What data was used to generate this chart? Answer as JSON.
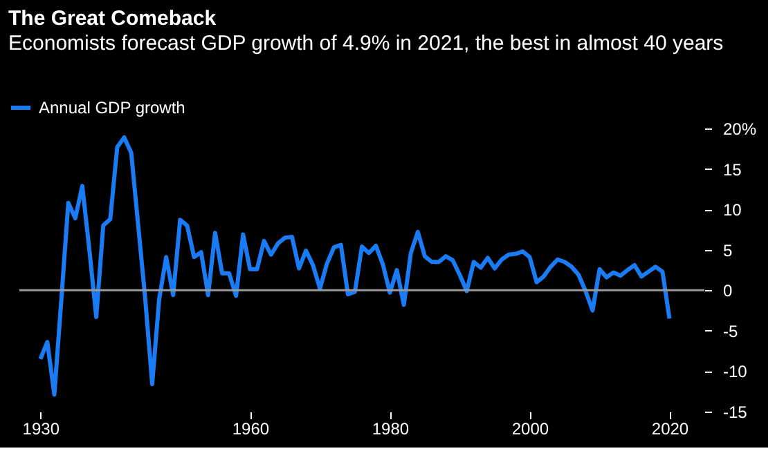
{
  "chart_data": {
    "type": "line",
    "title": "The Great Comeback",
    "subtitle": "Economists forecast GDP growth of 4.9% in 2021, the best in almost 40 years",
    "x": [
      1930,
      1931,
      1932,
      1933,
      1934,
      1935,
      1936,
      1937,
      1938,
      1939,
      1940,
      1941,
      1942,
      1943,
      1944,
      1945,
      1946,
      1947,
      1948,
      1949,
      1950,
      1951,
      1952,
      1953,
      1954,
      1955,
      1956,
      1957,
      1958,
      1959,
      1960,
      1961,
      1962,
      1963,
      1964,
      1965,
      1966,
      1967,
      1968,
      1969,
      1970,
      1971,
      1972,
      1973,
      1974,
      1975,
      1976,
      1977,
      1978,
      1979,
      1980,
      1981,
      1982,
      1983,
      1984,
      1985,
      1986,
      1987,
      1988,
      1989,
      1990,
      1991,
      1992,
      1993,
      1994,
      1995,
      1996,
      1997,
      1998,
      1999,
      2000,
      2001,
      2002,
      2003,
      2004,
      2005,
      2006,
      2007,
      2008,
      2009,
      2010,
      2011,
      2012,
      2013,
      2014,
      2015,
      2016,
      2017,
      2018,
      2019,
      2020
    ],
    "series": [
      {
        "name": "Annual GDP growth",
        "color": "#1a7cf5",
        "values": [
          -8.5,
          -6.4,
          -12.9,
          -1.2,
          10.8,
          8.9,
          12.9,
          5.1,
          -3.3,
          8.0,
          8.8,
          17.7,
          18.9,
          17.0,
          8.0,
          -1.0,
          -11.6,
          -1.1,
          4.1,
          -0.6,
          8.7,
          8.0,
          4.1,
          4.7,
          -0.6,
          7.1,
          2.1,
          2.1,
          -0.7,
          6.9,
          2.6,
          2.6,
          6.1,
          4.4,
          5.8,
          6.5,
          6.6,
          2.7,
          4.9,
          3.1,
          0.2,
          3.3,
          5.3,
          5.6,
          -0.5,
          -0.2,
          5.4,
          4.6,
          5.5,
          3.2,
          -0.3,
          2.5,
          -1.8,
          4.6,
          7.2,
          4.2,
          3.5,
          3.5,
          4.2,
          3.7,
          1.9,
          -0.1,
          3.5,
          2.8,
          4.0,
          2.7,
          3.8,
          4.4,
          4.5,
          4.8,
          4.1,
          1.0,
          1.7,
          2.9,
          3.8,
          3.5,
          2.9,
          1.9,
          -0.1,
          -2.5,
          2.6,
          1.6,
          2.2,
          1.8,
          2.5,
          3.1,
          1.7,
          2.3,
          2.9,
          2.3,
          -3.5
        ]
      }
    ],
    "xlim": [
      1927,
      2025
    ],
    "xticks": [
      1930,
      1960,
      1980,
      2000,
      2020
    ],
    "ylim": [
      -15,
      20
    ],
    "yticks": [
      -15,
      -10,
      -5,
      0,
      5,
      10,
      15,
      {
        "value": 20,
        "label": "20%"
      }
    ],
    "ref_lines": [
      {
        "axis": "y",
        "value": 0,
        "color": "#9a9a9a"
      }
    ],
    "grid": false,
    "legend": "top left",
    "marker": "none",
    "line_style": "solid"
  }
}
